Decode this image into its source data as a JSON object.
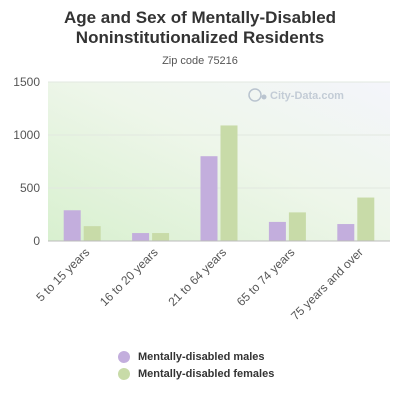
{
  "title_line1": "Age and Sex of Mentally-Disabled",
  "title_line2": "Noninstitutionalized Residents",
  "subtitle": "Zip code 75216",
  "watermark": "City-Data.com",
  "colors": {
    "males": "#c3aedd",
    "females": "#c8dba8"
  },
  "chart_data": {
    "type": "bar",
    "categories": [
      "5 to 15 years",
      "16 to 20 years",
      "21 to 64 years",
      "65 to 74 years",
      "75 years and over"
    ],
    "series": [
      {
        "name": "Mentally-disabled males",
        "values": [
          290,
          75,
          800,
          180,
          160
        ]
      },
      {
        "name": "Mentally-disabled females",
        "values": [
          140,
          75,
          1090,
          270,
          410
        ]
      }
    ],
    "yticks": [
      0,
      500,
      1000,
      1500
    ],
    "ylim": [
      0,
      1500
    ],
    "grid": true,
    "legend": "bottom"
  }
}
